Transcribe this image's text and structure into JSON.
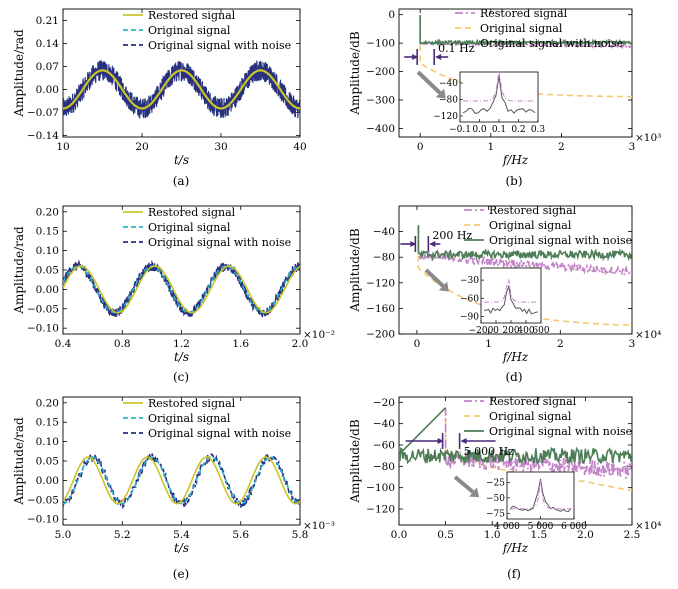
{
  "colors": {
    "restored": "#c9c428",
    "original": "#2bb5c9",
    "noise": "#27317f",
    "restored_spec": "#c384c9",
    "original_spec": "#f6c971",
    "noise_spec": "#4f7d58",
    "arrow": "#4a2a7a",
    "inset_arrow": "#8a8a8a"
  },
  "chart_data": [
    {
      "id": "a",
      "type": "line",
      "caption": "(a)",
      "xlabel": "t/s",
      "ylabel": "Amplitude/rad",
      "xlim": [
        10,
        40
      ],
      "ylim": [
        -0.145,
        0.245
      ],
      "xticks": [
        "10",
        "20",
        "30",
        "40"
      ],
      "yticks": [
        "0.21",
        "0.14",
        "0.07",
        "0.00",
        "−0.07",
        "−0.14"
      ],
      "ytick_values": [
        0.21,
        0.14,
        0.07,
        0.0,
        -0.07,
        -0.14
      ],
      "legend": [
        "Restored signal",
        "Original signal",
        "Original signal with noise"
      ],
      "signal": {
        "amplitude": 0.058,
        "frequency_hz": 0.1,
        "noise_band": 0.035
      }
    },
    {
      "id": "b",
      "type": "line",
      "caption": "(b)",
      "xlabel": "f/Hz",
      "ylabel": "Amplitude/dB",
      "xlim": [
        -0.3,
        3.0
      ],
      "ylim": [
        -430,
        20
      ],
      "x_multiplier": "×10³",
      "xticks": [
        "0",
        "1",
        "2",
        "3"
      ],
      "xtick_values": [
        0,
        1,
        2,
        3
      ],
      "yticks": [
        "0",
        "−100",
        "−200",
        "−300",
        "−400"
      ],
      "ytick_values": [
        0,
        -100,
        -200,
        -300,
        -400
      ],
      "legend": [
        "Restored signal",
        "Original signal",
        "Original signal with noise"
      ],
      "annotation": "0.1 Hz",
      "inset": {
        "xticks": [
          "−0.1",
          "0.0",
          "0.1",
          "0.2",
          "0.3"
        ],
        "yticks": [
          "−40",
          "−80",
          "−120"
        ],
        "peak_x": 0.1
      }
    },
    {
      "id": "c",
      "type": "line",
      "caption": "(c)",
      "xlabel": "t/s",
      "ylabel": "Amplitude/rad",
      "xlim": [
        0.4,
        2.0
      ],
      "ylim": [
        -0.115,
        0.215
      ],
      "x_multiplier": "×10⁻²",
      "xticks": [
        "0.4",
        "0.8",
        "1.2",
        "1.6",
        "2.0"
      ],
      "xtick_values": [
        0.4,
        0.8,
        1.2,
        1.6,
        2.0
      ],
      "yticks": [
        "0.20",
        "0.15",
        "0.10",
        "0.05",
        "0.00",
        "−0.05",
        "−0.10"
      ],
      "ytick_values": [
        0.2,
        0.15,
        0.1,
        0.05,
        0.0,
        -0.05,
        -0.1
      ],
      "legend": [
        "Restored signal",
        "Original signal",
        "Original signal with noise"
      ],
      "signal": {
        "amplitude": 0.06,
        "frequency_hz": 200
      }
    },
    {
      "id": "d",
      "type": "line",
      "caption": "(d)",
      "xlabel": "f/Hz",
      "ylabel": "Amplitude/dB",
      "xlim": [
        -0.25,
        3.0
      ],
      "ylim": [
        -200,
        0
      ],
      "x_multiplier": "×10⁴",
      "xticks": [
        "0",
        "1",
        "2",
        "3"
      ],
      "xtick_values": [
        0,
        1,
        2,
        3
      ],
      "yticks": [
        "−40",
        "−80",
        "−120",
        "−160",
        "−200"
      ],
      "ytick_values": [
        -40,
        -80,
        -120,
        -160,
        -200
      ],
      "legend": [
        "Restored signal",
        "Original signal",
        "Original signal with noise"
      ],
      "annotation": "200 Hz",
      "inset": {
        "xticks": [
          "−200",
          "0",
          "200",
          "400",
          "600"
        ],
        "yticks": [
          "−30",
          "−60",
          "−90"
        ],
        "peak_x": 200
      }
    },
    {
      "id": "e",
      "type": "line",
      "caption": "(e)",
      "xlabel": "t/s",
      "ylabel": "Amplitude/rad",
      "xlim": [
        5.0,
        5.8
      ],
      "ylim": [
        -0.115,
        0.215
      ],
      "x_multiplier": "×10⁻³",
      "xticks": [
        "5.0",
        "5.2",
        "5.4",
        "5.6",
        "5.8"
      ],
      "xtick_values": [
        5.0,
        5.2,
        5.4,
        5.6,
        5.8
      ],
      "yticks": [
        "0.20",
        "0.15",
        "0.10",
        "0.05",
        "0.00",
        "−0.05",
        "−0.10"
      ],
      "ytick_values": [
        0.2,
        0.15,
        0.1,
        0.05,
        0.0,
        -0.05,
        -0.1
      ],
      "legend": [
        "Restored signal",
        "Original signal",
        "Original signal with noise"
      ],
      "signal": {
        "amplitude": 0.06,
        "frequency_hz": 5000
      }
    },
    {
      "id": "f",
      "type": "line",
      "caption": "(f)",
      "xlabel": "f/Hz",
      "ylabel": "Amplitude/dB",
      "xlim": [
        0.0,
        2.5
      ],
      "ylim": [
        -135,
        -15
      ],
      "x_multiplier": "×10⁴",
      "xticks": [
        "0.0",
        "0.5",
        "1.0",
        "1.5",
        "2.0",
        "2.5"
      ],
      "xtick_values": [
        0.0,
        0.5,
        1.0,
        1.5,
        2.0,
        2.5
      ],
      "yticks": [
        "−20",
        "−40",
        "−60",
        "−80",
        "−100",
        "−120"
      ],
      "ytick_values": [
        -20,
        -40,
        -60,
        -80,
        -100,
        -120
      ],
      "legend": [
        "Restored signal",
        "Original signal",
        "Original signal with noise"
      ],
      "annotation": "5 000 Hz",
      "inset": {
        "xticks": [
          "4 000",
          "5 000",
          "6 000"
        ],
        "yticks": [
          "−25",
          "−50",
          "−75"
        ],
        "peak_x": 5000
      }
    }
  ]
}
